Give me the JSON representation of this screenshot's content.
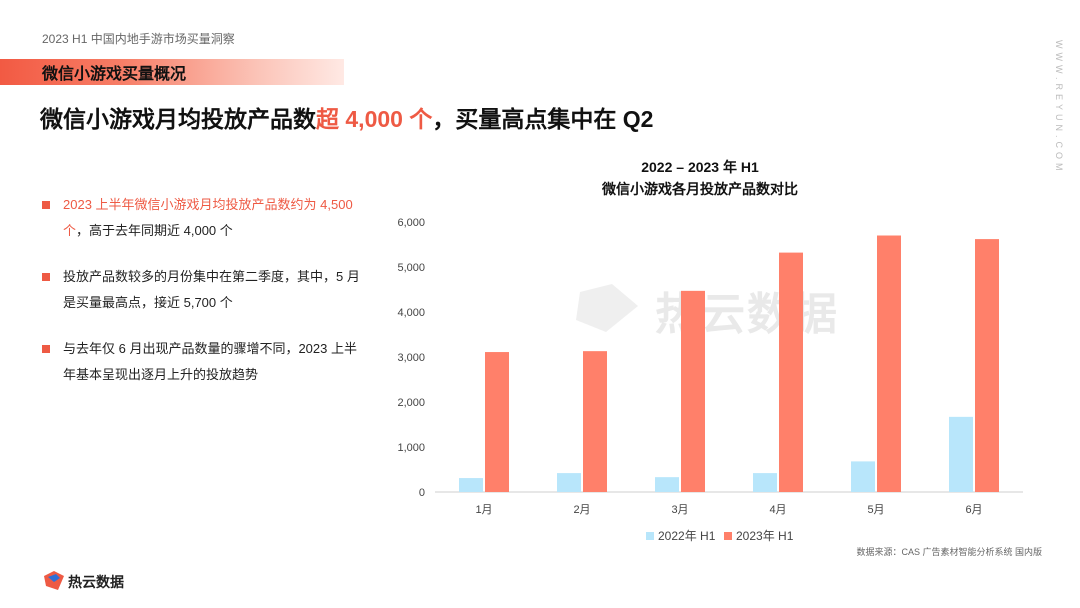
{
  "header": {
    "report_title": "2023 H1 中国内地手游市场买量洞察",
    "section_title": "微信小游戏买量概况",
    "headline_part1": "微信小游戏月均投放产品数",
    "headline_highlight": "超 4,000 个",
    "headline_part2": "，买量高点集中在 Q2"
  },
  "side_watermark": "WWW.REYUN.COM",
  "bullets": [
    {
      "highlight": "2023 上半年微信小游戏月均投放产品数约为 4,500 个",
      "text": "，高于去年同期近 4,000 个"
    },
    {
      "highlight": "",
      "text": "投放产品数较多的月份集中在第二季度，其中，5 月是买量最高点，接近 5,700 个"
    },
    {
      "highlight": "",
      "text": "与去年仅 6 月出现产品数量的骤增不同，2023 上半年基本呈现出逐月上升的投放趋势"
    }
  ],
  "chart_title_line1": "2022 – 2023 年 H1",
  "chart_title_line2": "微信小游戏各月投放产品数对比",
  "chart_data": {
    "type": "bar",
    "title": "2022 – 2023 年 H1 微信小游戏各月投放产品数对比",
    "categories": [
      "1月",
      "2月",
      "3月",
      "4月",
      "5月",
      "6月"
    ],
    "series": [
      {
        "name": "2022年 H1",
        "values": [
          310,
          420,
          330,
          420,
          680,
          1670
        ],
        "color": "#b8e6fb"
      },
      {
        "name": "2023年 H1",
        "values": [
          3110,
          3130,
          4470,
          5320,
          5700,
          5620
        ],
        "color": "#ff806a"
      }
    ],
    "yticks": [
      "0",
      "1,000",
      "2,000",
      "3,000",
      "4,000",
      "5,000",
      "6,000"
    ],
    "ylim": [
      0,
      6000
    ],
    "legend": "bottom",
    "grid": false
  },
  "source": "数据来源：CAS 广告素材智能分析系统 国内版",
  "center_watermark": "热云数据",
  "footer_brand": "热云数据"
}
